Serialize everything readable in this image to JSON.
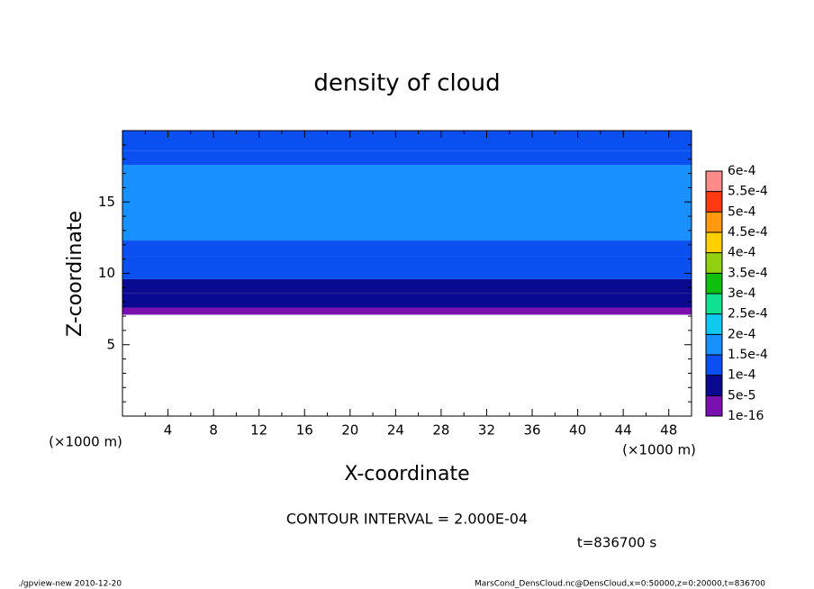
{
  "chart_data": {
    "type": "contour",
    "title": "density of cloud",
    "x_label": "X-coordinate",
    "y_label": "Z-coordinate",
    "x_unit_left": "(×1000 m)",
    "x_unit_right": "(×1000 m)",
    "xlim": [
      0,
      50
    ],
    "ylim": [
      0,
      20
    ],
    "xticks": [
      4,
      8,
      12,
      16,
      20,
      24,
      28,
      32,
      36,
      40,
      44,
      48
    ],
    "xminorticks": [
      2,
      6,
      10,
      14,
      18,
      22,
      26,
      30,
      34,
      38,
      42,
      46,
      50
    ],
    "yticks": [
      5,
      10,
      15
    ],
    "yminorticks": [
      1,
      2,
      3,
      4,
      6,
      7,
      8,
      9,
      11,
      12,
      13,
      14,
      16,
      17,
      18,
      19
    ],
    "levels": [
      {
        "value": 1e-16,
        "label": "1e-16"
      },
      {
        "value": 5e-05,
        "label": "5e-5"
      },
      {
        "value": 0.0001,
        "label": "1e-4"
      },
      {
        "value": 0.00015,
        "label": "1.5e-4"
      },
      {
        "value": 0.0002,
        "label": "2e-4"
      },
      {
        "value": 0.00025,
        "label": "2.5e-4"
      },
      {
        "value": 0.0003,
        "label": "3e-4"
      },
      {
        "value": 0.00035,
        "label": "3.5e-4"
      },
      {
        "value": 0.0004,
        "label": "4e-4"
      },
      {
        "value": 0.00045,
        "label": "4.5e-4"
      },
      {
        "value": 0.0005,
        "label": "5e-4"
      },
      {
        "value": 0.00055,
        "label": "5.5e-4"
      },
      {
        "value": 0.0006,
        "label": "6e-4"
      }
    ],
    "colors": [
      "#7a10b0",
      "#0a0a90",
      "#0a50f0",
      "#1890ff",
      "#10c8f0",
      "#10e090",
      "#10c010",
      "#90d010",
      "#ffd000",
      "#ff9a10",
      "#ff3a10",
      "#ff8a8a"
    ],
    "field": {
      "z_edges": [
        7.1,
        7.6,
        8.6,
        9.6,
        11.2,
        12.3,
        17.6,
        18.6,
        20
      ],
      "values": [
        3e-05,
        7e-05,
        9e-05,
        0.00012,
        0.00014,
        0.00017,
        0.00014,
        0.00012
      ]
    },
    "contour_interval": "CONTOUR INTERVAL = 2.000E-04",
    "time_label": "t=836700 s",
    "footer_left": "./gpview-new  2010-12-20",
    "footer_right": "MarsCond_DensCloud.nc@DensCloud,x=0:50000,z=0:20000,t=836700"
  }
}
